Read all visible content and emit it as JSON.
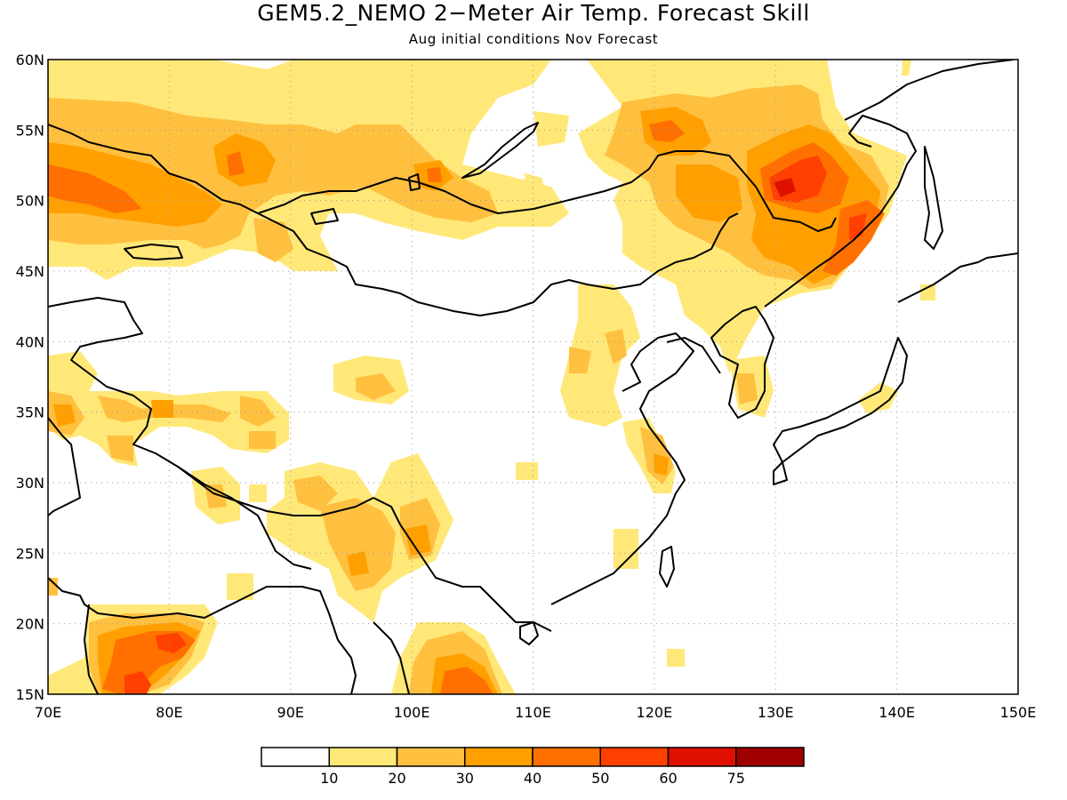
{
  "title": "GEM5.2_NEMO 2−Meter Air Temp. Forecast Skill",
  "subtitle": "Aug initial conditions  Nov Forecast",
  "map": {
    "lon_range": [
      70,
      150
    ],
    "lat_range": [
      15,
      60
    ],
    "lon_ticks": [
      "70E",
      "80E",
      "90E",
      "100E",
      "110E",
      "120E",
      "130E",
      "140E",
      "150E"
    ],
    "lat_ticks": [
      "15N",
      "20N",
      "25N",
      "30N",
      "35N",
      "40N",
      "45N",
      "50N",
      "55N",
      "60N"
    ],
    "gridlines": "dotted",
    "coastlines": true
  },
  "legend": {
    "colors": [
      "#ffffff",
      "#ffe878",
      "#ffc040",
      "#ffa000",
      "#ff7000",
      "#ff4000",
      "#e01000",
      "#a00000"
    ],
    "labels": [
      "10",
      "20",
      "30",
      "40",
      "50",
      "60",
      "75"
    ]
  }
}
